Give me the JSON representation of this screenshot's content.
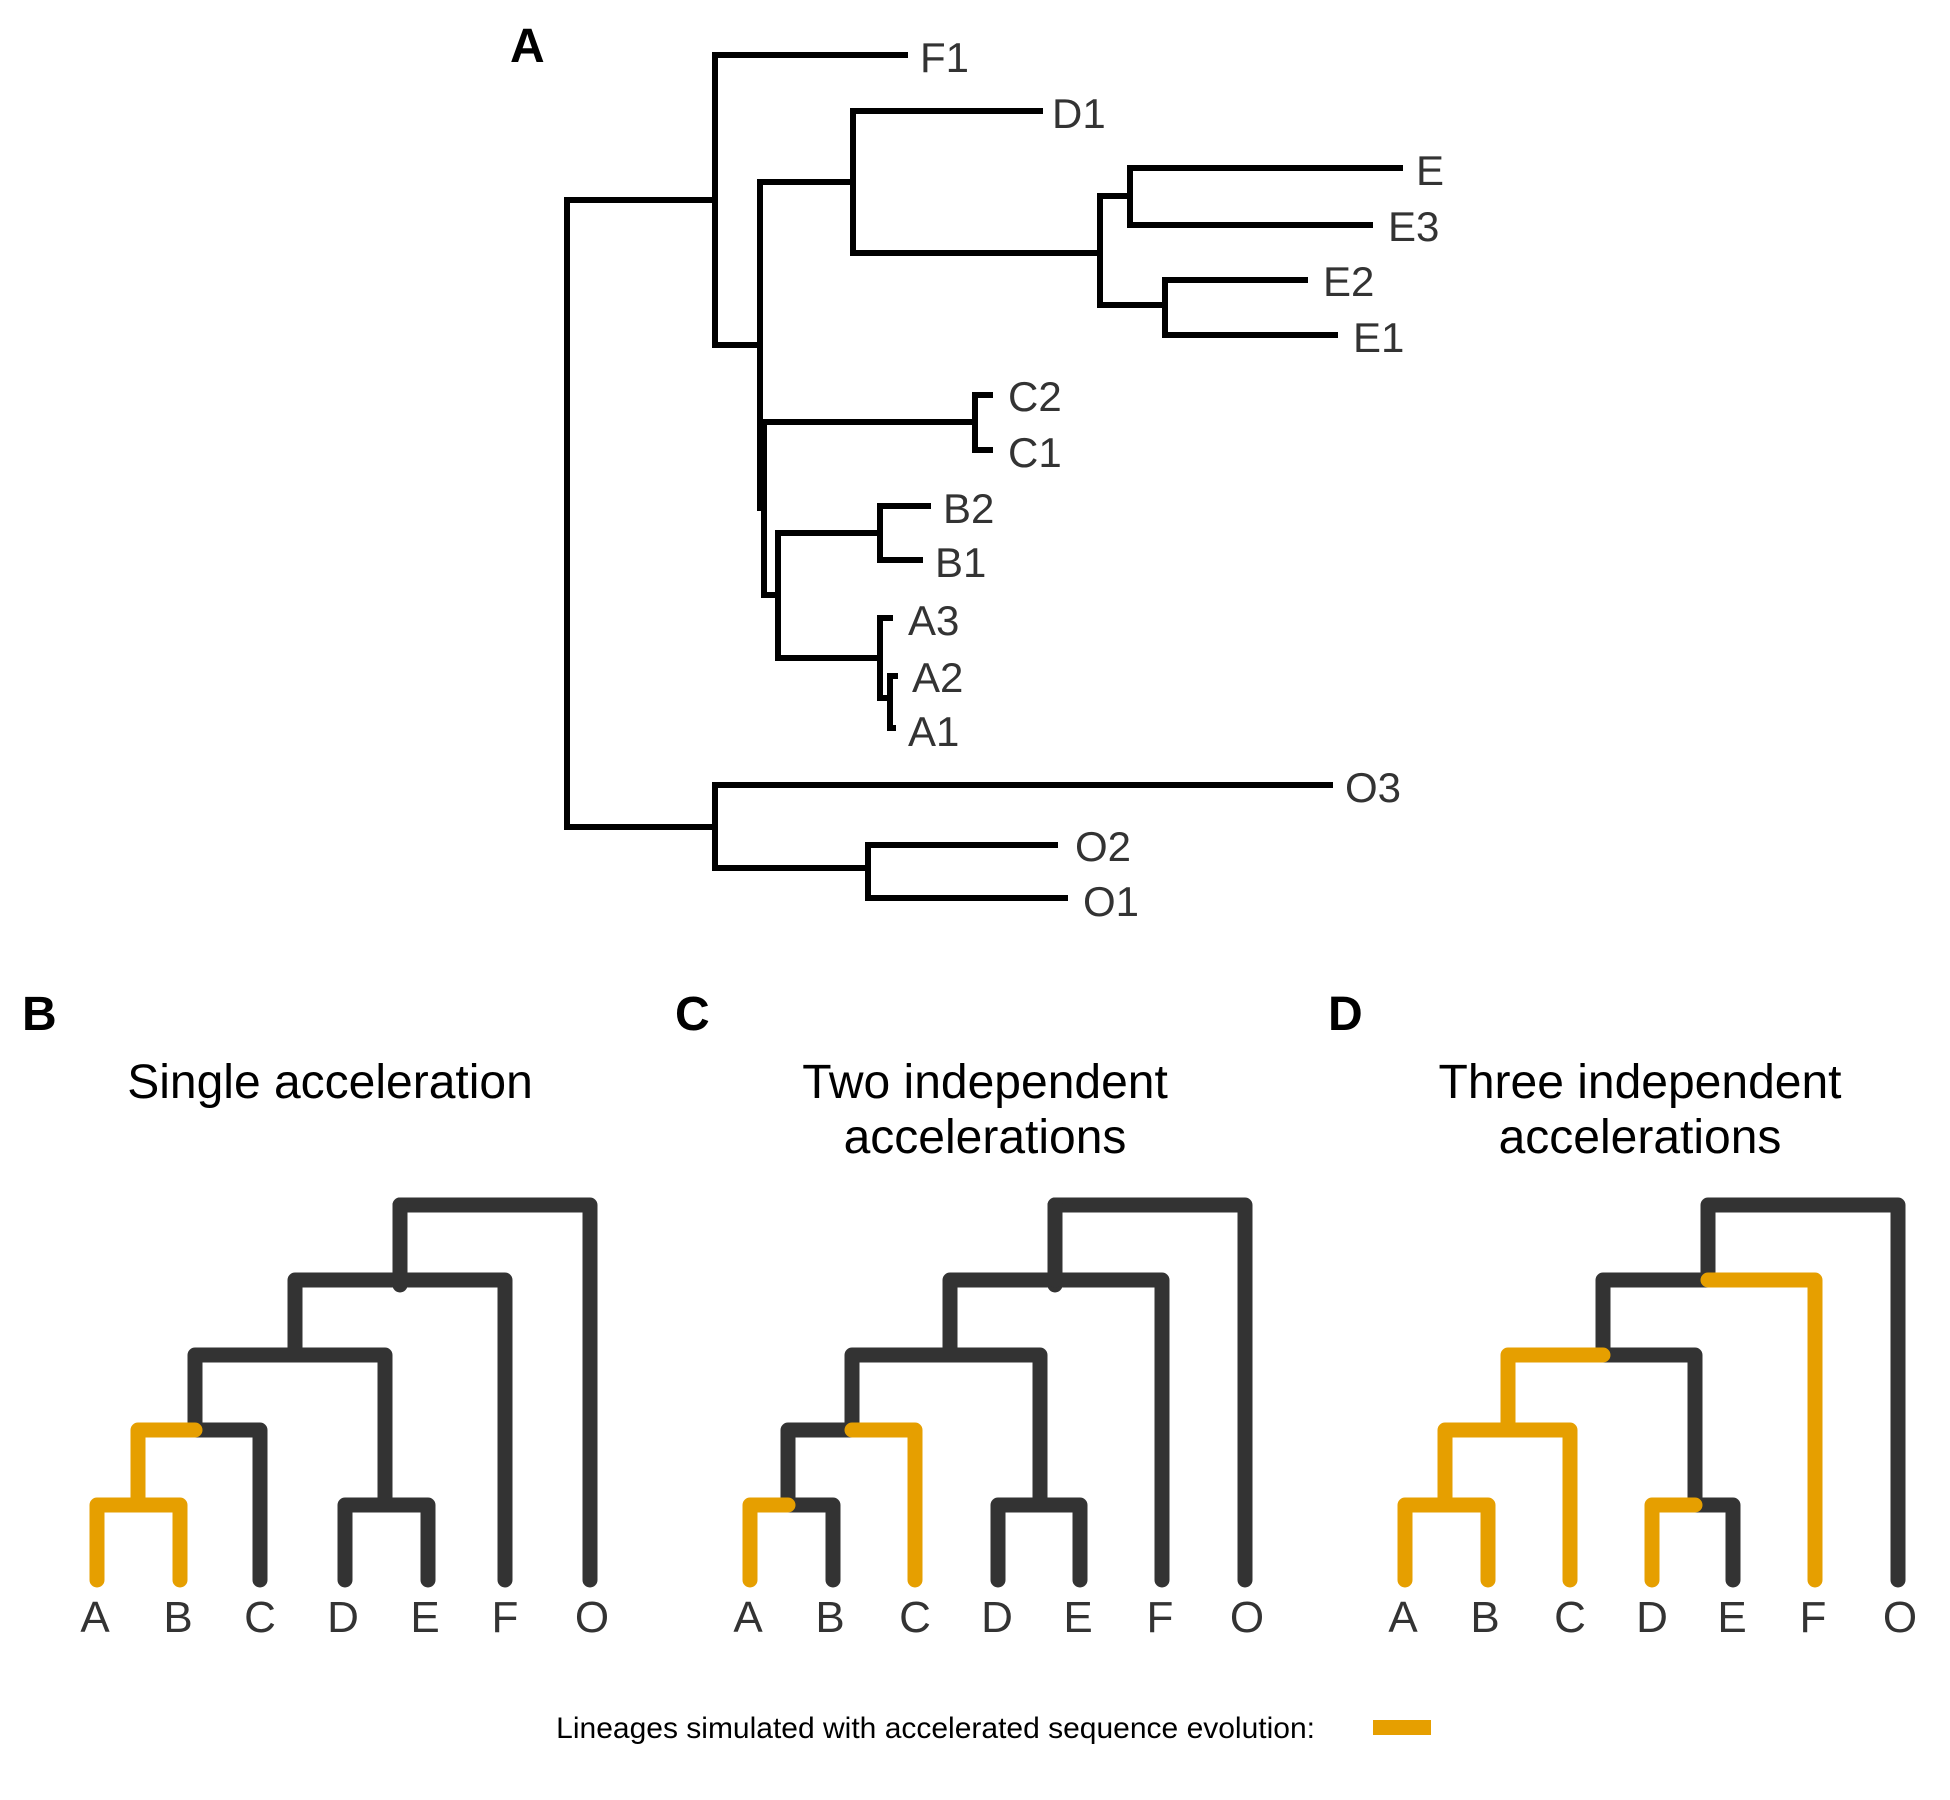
{
  "panel_a": {
    "letter": "A",
    "tips": [
      "F1",
      "D1",
      "E",
      "E3",
      "E2",
      "E1",
      "C2",
      "C1",
      "B2",
      "B1",
      "A3",
      "A2",
      "A1",
      "O3",
      "O2",
      "O1"
    ]
  },
  "panels": [
    {
      "letter": "B",
      "title_lines": [
        "Single acceleration"
      ],
      "tips": [
        "A",
        "B",
        "C",
        "D",
        "E",
        "F",
        "O"
      ],
      "accelerated_lineages": [
        "A",
        "B",
        "A+B"
      ]
    },
    {
      "letter": "C",
      "title_lines": [
        "Two independent",
        "accelerations"
      ],
      "tips": [
        "A",
        "B",
        "C",
        "D",
        "E",
        "F",
        "O"
      ],
      "accelerated_lineages": [
        "A",
        "C"
      ]
    },
    {
      "letter": "D",
      "title_lines": [
        "Three independent",
        "accelerations"
      ],
      "tips": [
        "A",
        "B",
        "C",
        "D",
        "E",
        "F",
        "O"
      ],
      "accelerated_lineages": [
        "A",
        "B",
        "C",
        "A+B",
        "A+B+C",
        "D",
        "F"
      ]
    }
  ],
  "legend": {
    "label": "Lineages simulated with accelerated sequence evolution:"
  },
  "colors": {
    "accelerated": "#E69F00",
    "normal": "#333333",
    "panel_a_branch": "#000000"
  }
}
